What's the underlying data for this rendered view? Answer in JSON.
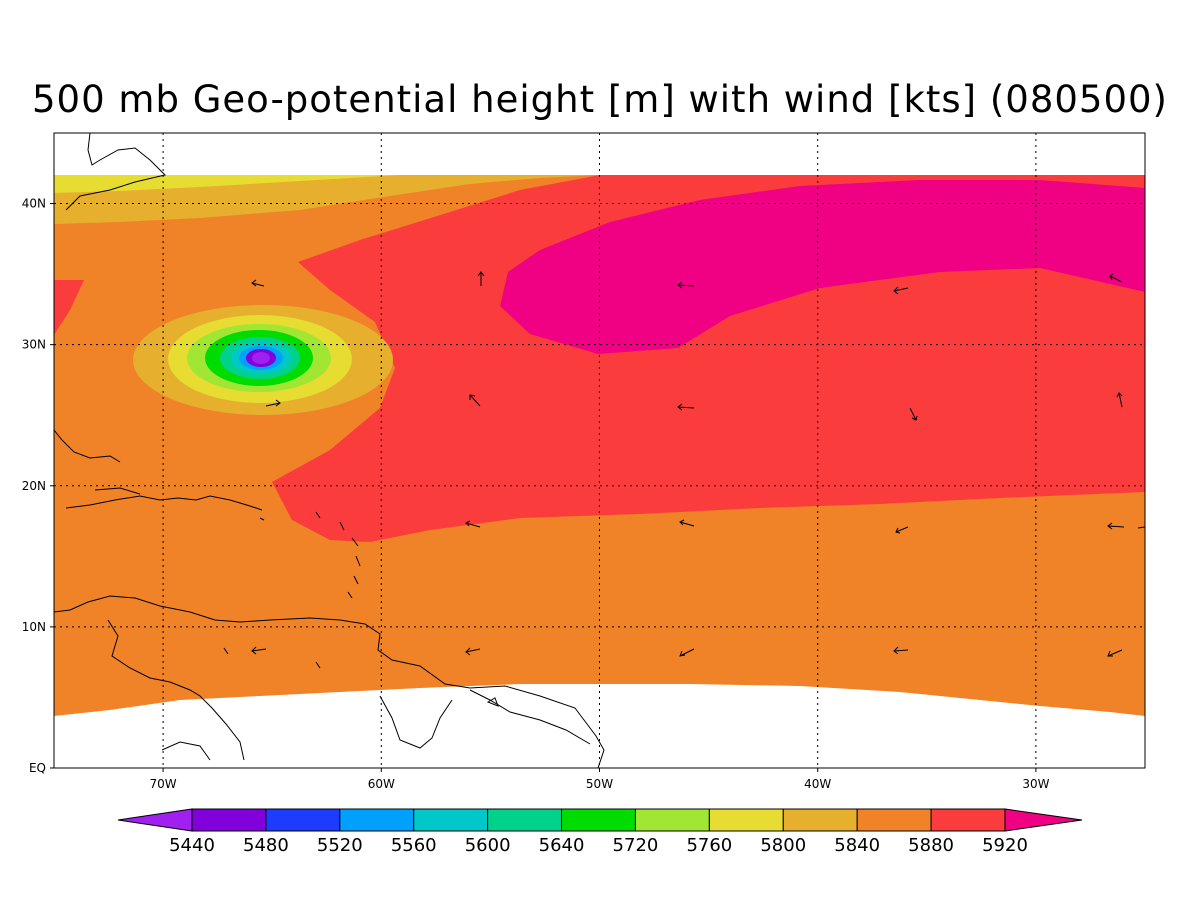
{
  "title": "500 mb Geo-potential height [m] with wind [kts] (080500)",
  "map": {
    "lon_range": [
      -75,
      -25
    ],
    "lat_range": [
      0,
      45
    ],
    "lat_ticks": [
      {
        "value": 0,
        "label": "EQ"
      },
      {
        "value": 10,
        "label": "10N"
      },
      {
        "value": 20,
        "label": "20N"
      },
      {
        "value": 30,
        "label": "30N"
      },
      {
        "value": 40,
        "label": "40N"
      }
    ],
    "lon_ticks": [
      {
        "value": -70,
        "label": "70W"
      },
      {
        "value": -60,
        "label": "60W"
      },
      {
        "value": -50,
        "label": "50W"
      },
      {
        "value": -40,
        "label": "40W"
      },
      {
        "value": -30,
        "label": "30W"
      }
    ],
    "grid": "dotted",
    "low_center": {
      "lon": -65.5,
      "lat": 29
    }
  },
  "colorbar": {
    "levels": [
      "5440",
      "5480",
      "5520",
      "5560",
      "5600",
      "5640",
      "5720",
      "5760",
      "5800",
      "5840",
      "5880",
      "5920"
    ],
    "colors": [
      "#a020f0",
      "#8200dc",
      "#1e3cff",
      "#00a0ff",
      "#00c8c8",
      "#00d28c",
      "#00dc00",
      "#a0e632",
      "#e6dc32",
      "#e6af2d",
      "#f08228",
      "#fa3c3c",
      "#f00082"
    ]
  }
}
